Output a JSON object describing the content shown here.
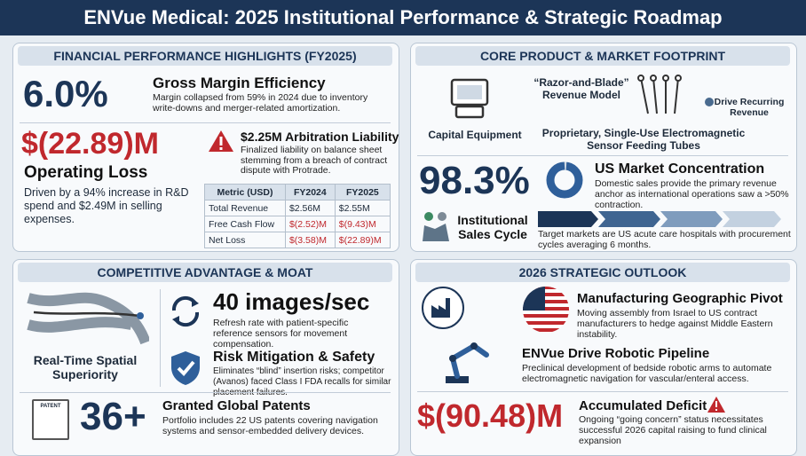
{
  "header": {
    "title": "ENVue Medical: 2025 Institutional Performance & Strategic Roadmap"
  },
  "financial": {
    "title": "FINANCIAL PERFORMANCE HIGHLIGHTS (FY2025)",
    "gross_margin": {
      "value": "6.0%",
      "label": "Gross Margin Efficiency",
      "text": "Margin collapsed from 59% in 2024 due to inventory write-downs and merger-related amortization."
    },
    "operating_loss": {
      "value": "$(22.89)M",
      "label": "Operating Loss",
      "text": "Driven by a 94% increase in R&D spend and $2.49M in selling expenses."
    },
    "arbitration": {
      "label": "$2.25M Arbitration Liability",
      "text": "Finalized liability on balance sheet stemming from a breach of contract dispute with Protrade."
    },
    "table": {
      "header": [
        "Metric (USD)",
        "FY2024",
        "FY2025"
      ],
      "rows": [
        [
          "Total Revenue",
          "$2.56M",
          "$2.55M"
        ],
        [
          "Free Cash Flow",
          "$(2.52)M",
          "$(9.43)M"
        ],
        [
          "Net Loss",
          "$(3.58)M",
          "$(22.89)M"
        ]
      ]
    }
  },
  "product": {
    "title": "CORE PRODUCT & MARKET FOOTPRINT",
    "model": "“Razor-and-Blade” Revenue Model",
    "capital": "Capital Equipment",
    "tubes": "Proprietary, Single-Use Electromagnetic Sensor Feeding Tubes",
    "recurring": "Drive Recurring Revenue",
    "concentration": {
      "value": "98.3%",
      "label": "US Market Concentration",
      "text": "Domestic sales provide the primary revenue anchor as international operations saw a >50% contraction."
    },
    "cycle": {
      "label": "Institutional Sales Cycle",
      "text": "Target markets are US acute care hospitals with procurement cycles averaging 6 months."
    }
  },
  "moat": {
    "title": "COMPETITIVE ADVANTAGE & MOAT",
    "spatial": "Real-Time Spatial Superiority",
    "rate": {
      "value": "40 images/sec",
      "text": "Refresh rate with patient-specific reference sensors for movement compensation."
    },
    "risk": {
      "label": "Risk Mitigation & Safety",
      "text": "Eliminates “blind” insertion risks; competitor (Avanos) faced Class I FDA recalls for similar placement failures."
    },
    "patents": {
      "icon": "PATENT",
      "value": "36+",
      "label": "Granted Global Patents",
      "text": "Portfolio includes 22 US patents covering navigation systems and sensor-embedded delivery devices."
    }
  },
  "outlook": {
    "title": "2026 STRATEGIC OUTLOOK",
    "items": [
      {
        "label": "Manufacturing Geographic Pivot",
        "text": "Moving assembly from Israel to US contract manufacturers to hedge against Middle Eastern instability."
      },
      {
        "label": "ENVue Drive Robotic Pipeline",
        "text": "Preclinical development of bedside robotic arms to automate electromagnetic navigation for vascular/enteral access."
      }
    ],
    "deficit": {
      "value": "$(90.48)M",
      "label": "Accumulated Deficit",
      "text": "Ongoing “going concern” status necessitates successful 2026 capital raising to fund clinical expansion"
    }
  }
}
